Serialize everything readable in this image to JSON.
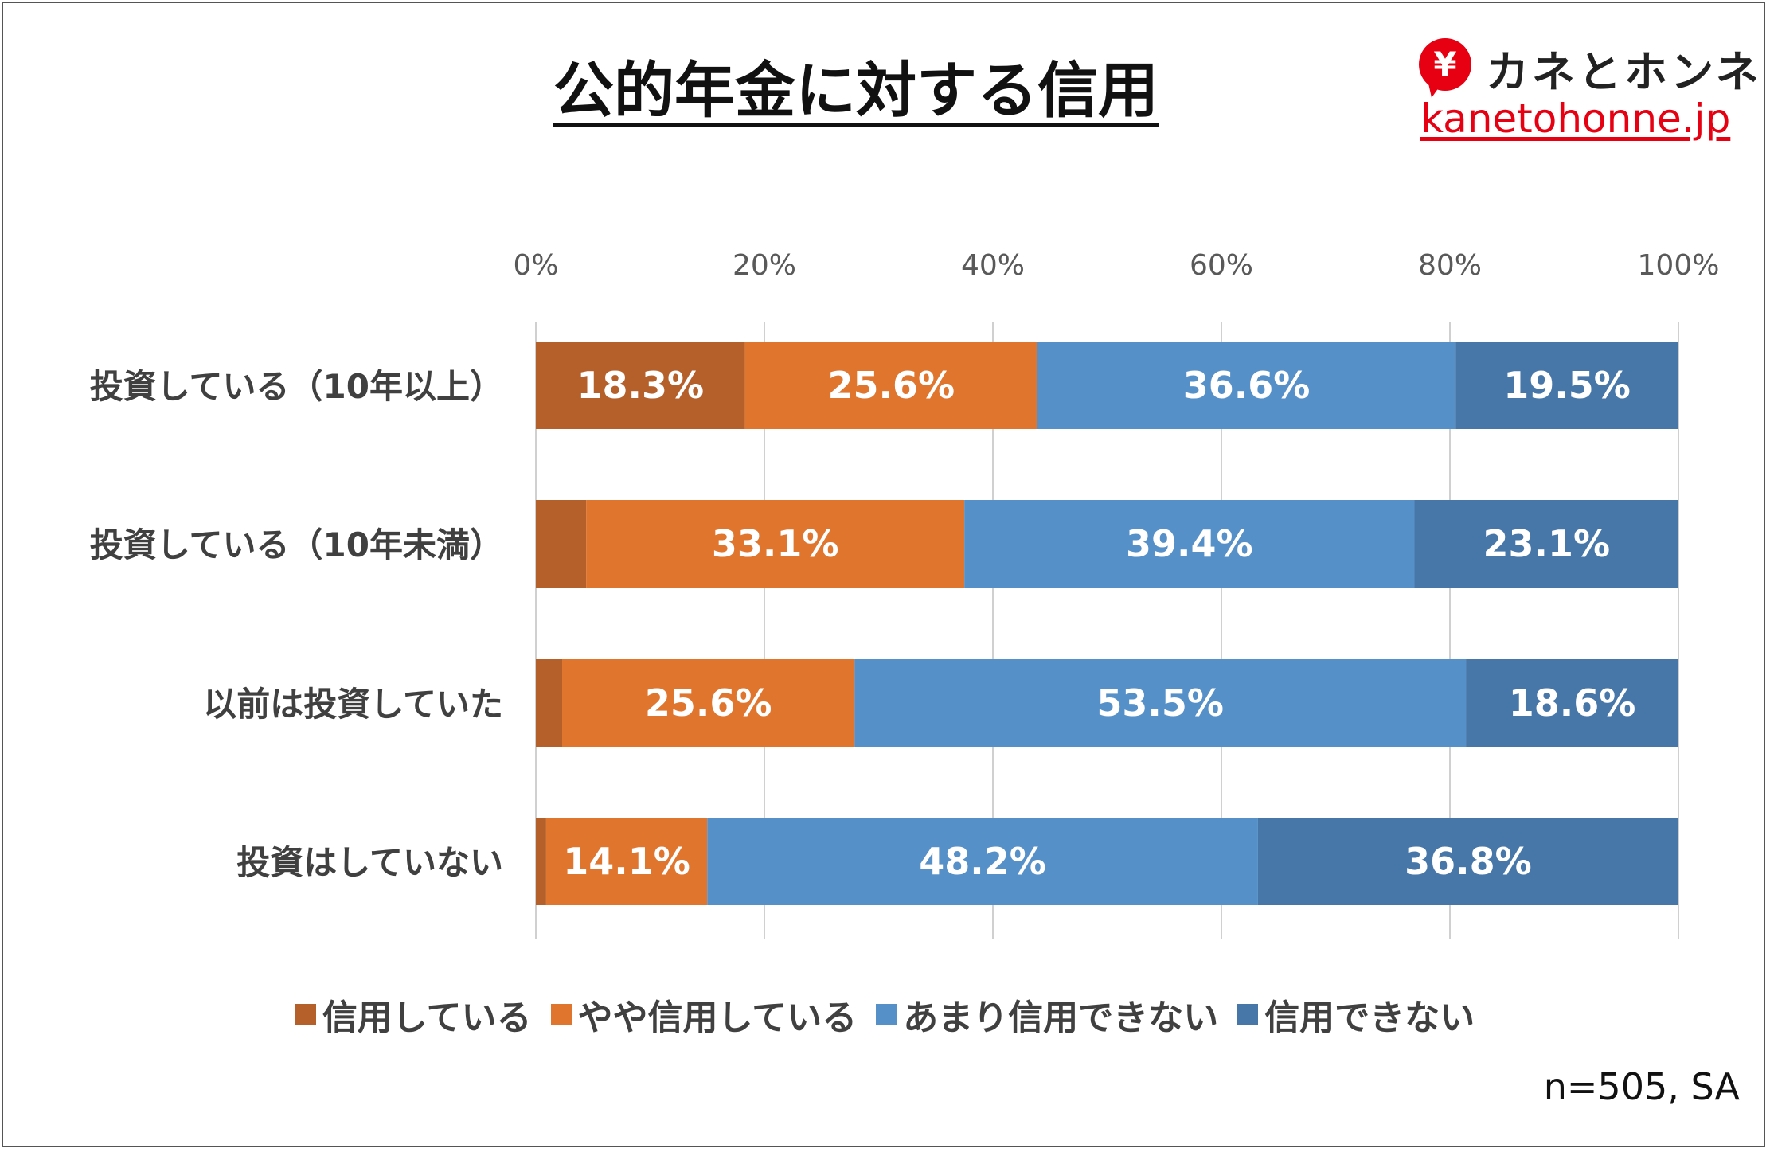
{
  "header": {
    "title": "公的年金に対する信用",
    "logo_symbol": "¥",
    "logo_name": "カネとホンネ",
    "logo_url": "kanetohonne.jp"
  },
  "colors": {
    "trust": "#b5602a",
    "somewhat_trust": "#e0752e",
    "not_much_trust": "#5590c8",
    "no_trust": "#4677a8",
    "gridline": "#d0d0d0",
    "brand": "#e60012"
  },
  "chart_data": {
    "type": "bar",
    "orientation": "horizontal",
    "stacked": true,
    "title": "公的年金に対する信用",
    "categories": [
      "投資している（10年以上）",
      "投資している（10年未満）",
      "以前は投資していた",
      "投資はしていない"
    ],
    "series": [
      {
        "name": "信用している",
        "values": [
          18.3,
          4.4,
          2.3,
          0.9
        ],
        "labels": [
          "18.3%",
          "",
          "",
          ""
        ]
      },
      {
        "name": "やや信用している",
        "values": [
          25.6,
          33.1,
          25.6,
          14.1
        ],
        "labels": [
          "25.6%",
          "33.1%",
          "25.6%",
          "14.1%"
        ]
      },
      {
        "name": "あまり信用できない",
        "values": [
          36.6,
          39.4,
          53.5,
          48.2
        ],
        "labels": [
          "36.6%",
          "39.4%",
          "53.5%",
          "48.2%"
        ]
      },
      {
        "name": "信用できない",
        "values": [
          19.5,
          23.1,
          18.6,
          36.8
        ],
        "labels": [
          "19.5%",
          "23.1%",
          "18.6%",
          "36.8%"
        ]
      }
    ],
    "xlim": [
      0,
      100
    ],
    "xticks": [
      0,
      20,
      40,
      60,
      80,
      100
    ],
    "xtick_labels": [
      "0%",
      "20%",
      "40%",
      "60%",
      "80%",
      "100%"
    ],
    "grid": true,
    "legend_position": "bottom",
    "xlabel": "",
    "ylabel": ""
  },
  "legend": {
    "items": [
      "信用している",
      "やや信用している",
      "あまり信用できない",
      "信用できない"
    ]
  },
  "footer": {
    "note": "n=505, SA"
  }
}
